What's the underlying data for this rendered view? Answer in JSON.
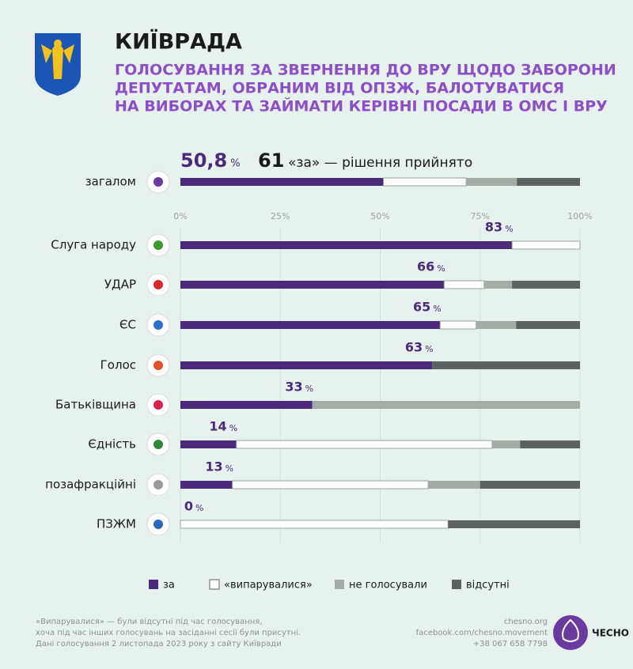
{
  "chart_data": {
    "type": "stacked-bar",
    "title": "КИЇВРАДА",
    "subtitle": [
      "ГОЛОСУВАННЯ ЗА ЗВЕРНЕННЯ ДО ВРУ ЩОДО ЗАБОРОНИ",
      "ДЕПУТАТАМ, ОБРАНИМ ВІД ОПЗЖ, БАЛОТУВАТИСЯ",
      "НА ВИБОРАХ ТА ЗАЙМАТИ КЕРІВНІ ПОСАДИ В ОМС І ВРУ"
    ],
    "votes_for": 61,
    "result_text": "«за» — рішення прийнято",
    "unit_label": "%",
    "categories": [
      "загалом",
      "Слуга народу",
      "УДАР",
      "ЄС",
      "Голос",
      "Батьківщина",
      "Єдність",
      "позафракційні",
      "ПЗЖМ"
    ],
    "series": [
      {
        "name": "за",
        "color": "#4b2a7b",
        "values": [
          50.8,
          83,
          66,
          65,
          63,
          33,
          14,
          13,
          0
        ],
        "value_labels": [
          "50,8",
          "83",
          "66",
          "65",
          "63",
          "33",
          "14",
          "13",
          "0"
        ]
      },
      {
        "name": "«випарувалися»",
        "color": "#ffffff",
        "values": [
          20.7,
          17,
          10,
          9,
          0,
          0,
          64,
          49,
          67
        ]
      },
      {
        "name": "не голосували",
        "color": "#a4aca8",
        "values": [
          12.7,
          0,
          7,
          10,
          0,
          67,
          7,
          13,
          0
        ]
      },
      {
        "name": "відсутні",
        "color": "#5c6260",
        "values": [
          15.8,
          0,
          17,
          16,
          37,
          0,
          15,
          25,
          33
        ]
      }
    ],
    "xlim": [
      0,
      100
    ],
    "xticks": [
      {
        "value": 0,
        "label": "0%"
      },
      {
        "value": 25,
        "label": "25%"
      },
      {
        "value": 50,
        "label": "50%"
      },
      {
        "value": 75,
        "label": "75%"
      },
      {
        "value": 100,
        "label": "100%"
      }
    ],
    "grid": true,
    "footnote": [
      "«Випарувалися» — були відсутні під час голосування,",
      "хоча під час інших голосувань на засіданні сесії були присутні.",
      "Дані голосування 2 листопада 2023 року з сайту Київради"
    ],
    "contacts": [
      "chesno.org",
      "facebook.com/chesno.movement",
      "+38 067 658 7798"
    ],
    "brand": "ЧЕСНО"
  }
}
